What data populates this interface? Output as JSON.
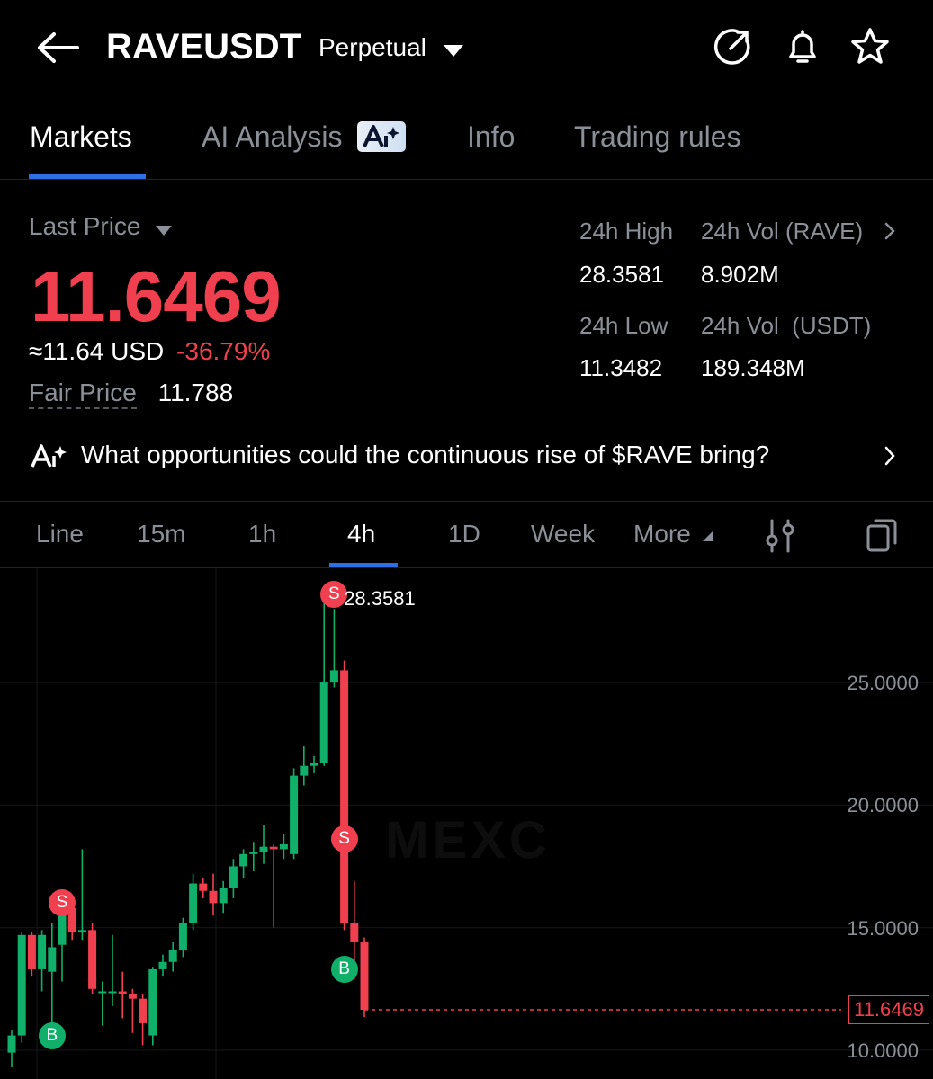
{
  "header": {
    "symbol": "RAVEUSDT",
    "contract_type": "Perpetual",
    "icons": [
      "back-arrow-icon",
      "chevron-down-icon",
      "share-icon",
      "bell-icon",
      "star-icon"
    ]
  },
  "tabs": [
    {
      "label": "Markets",
      "active": true
    },
    {
      "label": "AI Analysis",
      "active": false
    },
    {
      "label": "Info",
      "active": false
    },
    {
      "label": "Trading rules",
      "active": false
    }
  ],
  "price": {
    "last_price_label": "Last Price",
    "last_price": "11.6469",
    "usd_approx": "≈11.64 USD",
    "change_pct": "-36.79%",
    "fair_price_label": "Fair Price",
    "fair_price": "11.788",
    "color_down": "#f0404f",
    "color_up": "#10b06a"
  },
  "stats": {
    "high_label": "24h High",
    "high_value": "28.3581",
    "vol_base_label": "24h Vol (RAVE)",
    "vol_base_value": "8.902M",
    "low_label": "24h Low",
    "low_value": "11.3482",
    "vol_quote_label": "24h Vol  (USDT)",
    "vol_quote_value": "189.348M"
  },
  "ai_prompt": {
    "text": "What opportunities could the continuous rise of $RAVE bring?"
  },
  "timeframes": [
    {
      "label": "Line",
      "active": false
    },
    {
      "label": "15m",
      "active": false
    },
    {
      "label": "1h",
      "active": false
    },
    {
      "label": "4h",
      "active": true
    },
    {
      "label": "1D",
      "active": false
    },
    {
      "label": "Week",
      "active": false
    },
    {
      "label": "More",
      "active": false
    }
  ],
  "chart_data": {
    "type": "candlestick",
    "interval": "4h",
    "y_ticks": [
      "25.0000",
      "20.0000",
      "15.0000",
      "10.0000"
    ],
    "y_tick_values": [
      25,
      20,
      15,
      10
    ],
    "ylim": [
      9.3,
      29.0
    ],
    "high_marker": "28.3581",
    "high_value": 28.3581,
    "last_price_marker": "11.6469",
    "last_value": 11.6469,
    "watermark": "MEXC",
    "candles": [
      {
        "o": 9.9,
        "h": 10.8,
        "l": 9.3,
        "c": 10.6
      },
      {
        "o": 10.6,
        "h": 14.8,
        "l": 10.3,
        "c": 14.7
      },
      {
        "o": 14.7,
        "h": 14.8,
        "l": 13.0,
        "c": 13.3
      },
      {
        "o": 13.3,
        "h": 14.9,
        "l": 12.4,
        "c": 14.7
      },
      {
        "o": 13.2,
        "h": 15.2,
        "l": 10.6,
        "c": 14.2
      },
      {
        "o": 14.3,
        "h": 15.9,
        "l": 12.8,
        "c": 15.8
      },
      {
        "o": 15.8,
        "h": 16.0,
        "l": 14.5,
        "c": 14.8
      },
      {
        "o": 14.8,
        "h": 18.2,
        "l": 14.5,
        "c": 14.9
      },
      {
        "o": 14.9,
        "h": 15.2,
        "l": 12.3,
        "c": 12.5
      },
      {
        "o": 12.4,
        "h": 12.8,
        "l": 11.0,
        "c": 12.4
      },
      {
        "o": 12.4,
        "h": 14.7,
        "l": 11.8,
        "c": 12.4
      },
      {
        "o": 12.4,
        "h": 13.2,
        "l": 11.3,
        "c": 12.3
      },
      {
        "o": 12.3,
        "h": 12.5,
        "l": 10.7,
        "c": 12.1
      },
      {
        "o": 12.1,
        "h": 12.3,
        "l": 10.2,
        "c": 11.1
      },
      {
        "o": 10.6,
        "h": 13.4,
        "l": 10.2,
        "c": 13.3
      },
      {
        "o": 13.3,
        "h": 13.9,
        "l": 13.0,
        "c": 13.6
      },
      {
        "o": 13.6,
        "h": 14.4,
        "l": 13.2,
        "c": 14.1
      },
      {
        "o": 14.1,
        "h": 15.4,
        "l": 13.8,
        "c": 15.2
      },
      {
        "o": 15.2,
        "h": 17.2,
        "l": 14.9,
        "c": 16.8
      },
      {
        "o": 16.8,
        "h": 17.0,
        "l": 16.2,
        "c": 16.5
      },
      {
        "o": 16.5,
        "h": 17.2,
        "l": 15.5,
        "c": 16.0
      },
      {
        "o": 16.0,
        "h": 16.9,
        "l": 15.6,
        "c": 16.6
      },
      {
        "o": 16.6,
        "h": 17.8,
        "l": 16.2,
        "c": 17.5
      },
      {
        "o": 17.5,
        "h": 18.2,
        "l": 17.0,
        "c": 18.0
      },
      {
        "o": 18.0,
        "h": 18.5,
        "l": 17.3,
        "c": 18.1
      },
      {
        "o": 18.1,
        "h": 19.2,
        "l": 17.6,
        "c": 18.3
      },
      {
        "o": 18.3,
        "h": 18.4,
        "l": 15.0,
        "c": 18.2
      },
      {
        "o": 18.2,
        "h": 18.8,
        "l": 17.8,
        "c": 18.4
      },
      {
        "o": 18.0,
        "h": 21.5,
        "l": 17.8,
        "c": 21.2
      },
      {
        "o": 21.2,
        "h": 22.4,
        "l": 20.8,
        "c": 21.6
      },
      {
        "o": 21.6,
        "h": 22.0,
        "l": 21.3,
        "c": 21.7
      },
      {
        "o": 21.7,
        "h": 28.3581,
        "l": 21.6,
        "c": 25.0
      },
      {
        "o": 25.0,
        "h": 28.0,
        "l": 24.8,
        "c": 25.5
      },
      {
        "o": 25.5,
        "h": 25.9,
        "l": 14.9,
        "c": 15.2
      },
      {
        "o": 15.2,
        "h": 16.9,
        "l": 12.9,
        "c": 14.4
      },
      {
        "o": 14.4,
        "h": 14.6,
        "l": 11.3482,
        "c": 11.6469
      }
    ],
    "signals": [
      {
        "label": "B",
        "index": 4,
        "price": 10.6
      },
      {
        "label": "S",
        "index": 5,
        "price": 16.0
      },
      {
        "label": "S",
        "index": 32,
        "price": 28.6
      },
      {
        "label": "S",
        "index": 33,
        "price": 18.6
      },
      {
        "label": "B",
        "index": 33,
        "price": 13.3
      }
    ]
  }
}
